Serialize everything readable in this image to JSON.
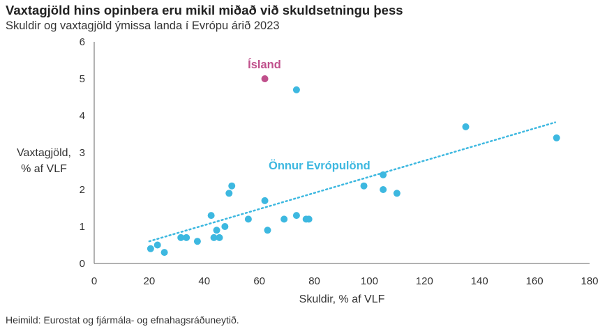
{
  "header": {
    "title": "Vaxtagjöld hins opinbera eru mikil miðað við skuldsetningu þess",
    "subtitle": "Skuldir og vaxtagjöld ýmissa landa í Evrópu árið 2023"
  },
  "footer": {
    "source": "Heimild: Eurostat og fjármála- og efnahagsráðuneytið."
  },
  "colors": {
    "europe": "#3db8e0",
    "iceland": "#c0508c",
    "axis": "#666666"
  },
  "chart_data": {
    "type": "scatter",
    "xlabel": "Skuldir, % af VLF",
    "ylabel": [
      "Vaxtagjöld,",
      "% af VLF"
    ],
    "xlim": [
      0,
      180
    ],
    "ylim": [
      0,
      6
    ],
    "xticks": [
      0,
      20,
      40,
      60,
      80,
      100,
      120,
      140,
      160,
      180
    ],
    "yticks": [
      0,
      1,
      2,
      3,
      4,
      5,
      6
    ],
    "grid": false,
    "series": [
      {
        "name": "Önnur Evrópulönd",
        "color": "#3db8e0",
        "points": [
          [
            20.5,
            0.4
          ],
          [
            23,
            0.5
          ],
          [
            25.5,
            0.3
          ],
          [
            31.5,
            0.7
          ],
          [
            33.5,
            0.7
          ],
          [
            37.5,
            0.6
          ],
          [
            42.5,
            1.3
          ],
          [
            43.5,
            0.7
          ],
          [
            44.5,
            0.9
          ],
          [
            45.5,
            0.7
          ],
          [
            47.5,
            1.0
          ],
          [
            49,
            1.9
          ],
          [
            50,
            2.1
          ],
          [
            56,
            1.2
          ],
          [
            62,
            1.7
          ],
          [
            63,
            0.9
          ],
          [
            69,
            1.2
          ],
          [
            73.5,
            1.3
          ],
          [
            77,
            1.2
          ],
          [
            78,
            1.2
          ],
          [
            73.5,
            4.7
          ],
          [
            98,
            2.1
          ],
          [
            105,
            2.4
          ],
          [
            105,
            2.0
          ],
          [
            110,
            1.9
          ],
          [
            135,
            3.7
          ],
          [
            168,
            3.4
          ]
        ]
      },
      {
        "name": "Ísland",
        "color": "#c0508c",
        "points": [
          [
            62,
            5.0
          ]
        ]
      }
    ],
    "trendline": {
      "x": [
        20,
        167.5
      ],
      "y": [
        0.6,
        3.82
      ],
      "style": "dotted"
    }
  }
}
